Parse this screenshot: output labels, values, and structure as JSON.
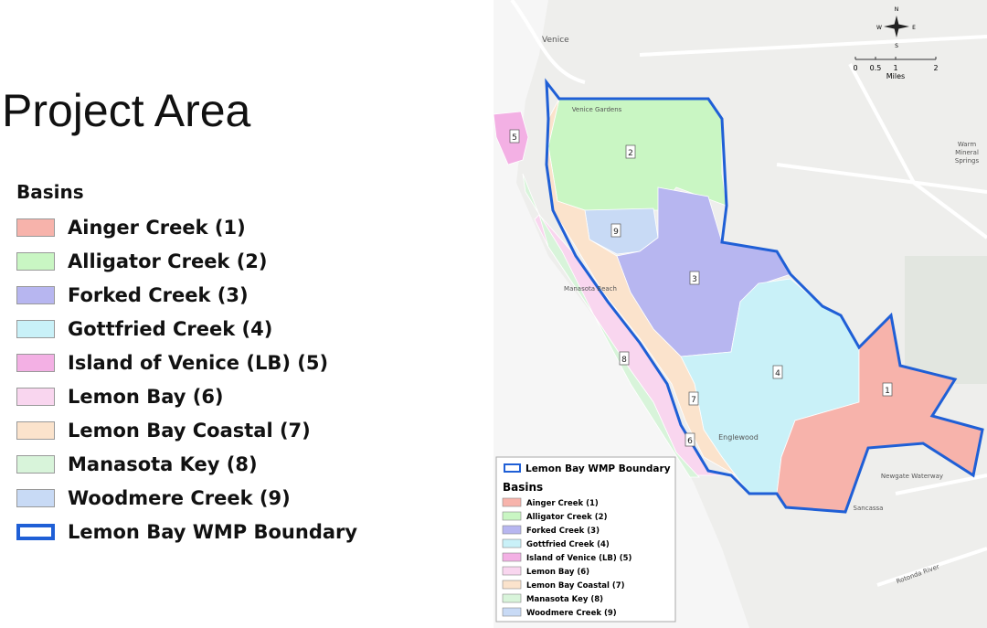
{
  "title": "Project Area",
  "legend": {
    "heading": "Basins",
    "items": [
      {
        "label": "Ainger Creek (1)",
        "color": "#f7b3ab"
      },
      {
        "label": "Alligator Creek (2)",
        "color": "#c9f6c3"
      },
      {
        "label": "Forked Creek (3)",
        "color": "#b7b6f0"
      },
      {
        "label": "Gottfried Creek (4)",
        "color": "#c9f1f8"
      },
      {
        "label": "Island of Venice (LB) (5)",
        "color": "#f3b0e4"
      },
      {
        "label": "Lemon Bay (6)",
        "color": "#f9d6ef"
      },
      {
        "label": "Lemon Bay Coastal (7)",
        "color": "#fbe3cc"
      },
      {
        "label": "Manasota Key (8)",
        "color": "#d8f4da"
      },
      {
        "label": "Woodmere Creek (9)",
        "color": "#c8daf5"
      }
    ],
    "boundary": "Lemon Bay WMP Boundary",
    "boundary_color": "#1f5fd6"
  },
  "map": {
    "basin_labels": [
      "1",
      "2",
      "3",
      "4",
      "5",
      "6",
      "7",
      "8",
      "9"
    ],
    "places": [
      "Venice",
      "Venice Gardens",
      "Warm Mineral Springs",
      "Manasota Beach",
      "Englewood",
      "Sancassa",
      "Newgate Waterway",
      "Rotonda River"
    ],
    "compass": [
      "N",
      "E",
      "S",
      "W"
    ],
    "scale_ticks": [
      0,
      0.5,
      1,
      2
    ],
    "scale_unit": "Miles"
  }
}
